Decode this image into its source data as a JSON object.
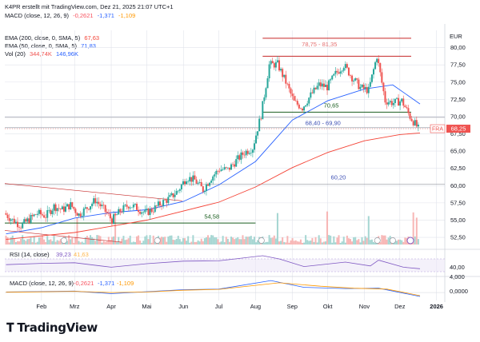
{
  "header": {
    "attribution": "K4PR erstellt mit TradingView.com, Dez 21, 2025 21:07 UTC+1",
    "macd_top": {
      "label": "MACD (close, 12, 26, 9)",
      "v1": "-0,2621",
      "v2": "-1,371",
      "v3": "-1,109"
    },
    "ema200": {
      "label": "EMA (200, close, 0, SMA, 5)",
      "value": "67,63"
    },
    "ema50": {
      "label": "EMA (50, close, 0, SMA, 5)",
      "value": "71,83"
    },
    "vol": {
      "label": "Vol (20)",
      "v1": "344,74K",
      "v2": "146,96K"
    }
  },
  "currency": "EUR",
  "brand": "TradingView",
  "colors": {
    "up": "#26a69a",
    "down": "#ef5350",
    "ema200": "#f44336",
    "ema50": "#2962ff",
    "resistance": "#c62828",
    "support": "#1b5e20",
    "label_blue": "#3f51b5",
    "rsi": "#7e57c2",
    "macd_line": "#2962ff",
    "signal_line": "#ff9800",
    "grid": "#e0e3eb"
  },
  "price_tag": {
    "symbol": "FRA",
    "value": "68,25"
  },
  "annotations": [
    {
      "text": "78,75 - 81,35",
      "price": 80.2,
      "date": "2025-09-24"
    },
    {
      "text": "70,65",
      "price": 71.3,
      "date": "2025-10-04"
    },
    {
      "text": "68,40 - 69,90",
      "price": 68.8,
      "date": "2025-09-27"
    },
    {
      "text": "60,20",
      "price": 60.9,
      "date": "2025-10-10"
    },
    {
      "text": "54,58",
      "price": 55.2,
      "date": "2025-06-25"
    }
  ],
  "rsi_panel": {
    "label": "RSI (14, close)",
    "v1": "39,23",
    "v2": "41,63",
    "ticks": [
      "40,00"
    ]
  },
  "macd_panel": {
    "label": "MACD (close, 12, 26, 9)",
    "v1": "-0,2621",
    "v2": "-1,371",
    "v3": "-1,109",
    "ticks": [
      "4,000",
      "0,0000"
    ]
  },
  "chart_data": {
    "type": "candlestick",
    "x_axis": {
      "type": "date",
      "range": [
        "2025-01-01",
        "2026-01-08"
      ],
      "tick_labels": [
        {
          "date": "2025-02-01",
          "label": "Feb"
        },
        {
          "date": "2025-03-01",
          "label": "Mrz"
        },
        {
          "date": "2025-04-01",
          "label": "Apr"
        },
        {
          "date": "2025-05-01",
          "label": "Mai"
        },
        {
          "date": "2025-06-01",
          "label": "Jun"
        },
        {
          "date": "2025-07-01",
          "label": "Jul"
        },
        {
          "date": "2025-08-01",
          "label": "Aug"
        },
        {
          "date": "2025-09-01",
          "label": "Sep"
        },
        {
          "date": "2025-10-01",
          "label": "Okt"
        },
        {
          "date": "2025-11-01",
          "label": "Nov"
        },
        {
          "date": "2025-12-01",
          "label": "Dez"
        },
        {
          "date": "2026-01-01",
          "label": "2026"
        }
      ]
    },
    "y_axis": {
      "unit": "EUR",
      "range": [
        51,
        82.5
      ],
      "ticks": [
        52.5,
        55,
        57.5,
        60,
        62.5,
        65,
        67.5,
        70,
        72.5,
        75,
        77.5,
        80
      ],
      "tick_labels": [
        "52,50",
        "55,00",
        "57,50",
        "60,00",
        "62,50",
        "65,00",
        "67,50",
        "70,00",
        "72,50",
        "75,00",
        "77,50",
        "80,00"
      ]
    },
    "grid": true,
    "closes": [
      [
        "2025-01-02",
        56.0
      ],
      [
        "2025-01-09",
        55.0
      ],
      [
        "2025-01-16",
        54.2
      ],
      [
        "2025-01-23",
        55.1
      ],
      [
        "2025-01-30",
        56.0
      ],
      [
        "2025-02-06",
        55.6
      ],
      [
        "2025-02-13",
        57.0
      ],
      [
        "2025-02-20",
        56.5
      ],
      [
        "2025-02-27",
        57.2
      ],
      [
        "2025-03-06",
        55.8
      ],
      [
        "2025-03-13",
        56.8
      ],
      [
        "2025-03-20",
        57.9
      ],
      [
        "2025-03-27",
        56.6
      ],
      [
        "2025-04-03",
        55.0
      ],
      [
        "2025-04-10",
        56.3
      ],
      [
        "2025-04-17",
        57.2
      ],
      [
        "2025-04-24",
        56.8
      ],
      [
        "2025-05-01",
        56.0
      ],
      [
        "2025-05-08",
        56.6
      ],
      [
        "2025-05-15",
        57.5
      ],
      [
        "2025-05-22",
        58.2
      ],
      [
        "2025-05-29",
        59.3
      ],
      [
        "2025-06-05",
        61.2
      ],
      [
        "2025-06-12",
        60.8
      ],
      [
        "2025-06-19",
        59.4
      ],
      [
        "2025-06-26",
        61.2
      ],
      [
        "2025-07-03",
        62.4
      ],
      [
        "2025-07-10",
        62.3
      ],
      [
        "2025-07-17",
        63.6
      ],
      [
        "2025-07-24",
        64.8
      ],
      [
        "2025-07-31",
        65.5
      ],
      [
        "2025-08-07",
        70.2
      ],
      [
        "2025-08-14",
        77.5
      ],
      [
        "2025-08-21",
        77.6
      ],
      [
        "2025-08-28",
        75.0
      ],
      [
        "2025-09-04",
        72.1
      ],
      [
        "2025-09-11",
        71.3
      ],
      [
        "2025-09-18",
        73.1
      ],
      [
        "2025-09-25",
        74.6
      ],
      [
        "2025-10-02",
        74.3
      ],
      [
        "2025-10-09",
        76.2
      ],
      [
        "2025-10-16",
        77.5
      ],
      [
        "2025-10-23",
        75.7
      ],
      [
        "2025-10-30",
        74.2
      ],
      [
        "2025-11-06",
        73.8
      ],
      [
        "2025-11-13",
        78.8
      ],
      [
        "2025-11-20",
        72.3
      ],
      [
        "2025-11-27",
        72.0
      ],
      [
        "2025-12-04",
        72.3
      ],
      [
        "2025-12-11",
        70.0
      ],
      [
        "2025-12-18",
        68.25
      ]
    ],
    "series": [
      {
        "name": "EMA (200, close, 0, SMA, 5)",
        "points": [
          [
            "2025-01-02",
            52.2
          ],
          [
            "2025-03-01",
            53.2
          ],
          [
            "2025-05-01",
            55.0
          ],
          [
            "2025-07-01",
            57.6
          ],
          [
            "2025-08-01",
            59.8
          ],
          [
            "2025-09-01",
            62.6
          ],
          [
            "2025-10-01",
            64.8
          ],
          [
            "2025-11-01",
            66.5
          ],
          [
            "2025-12-01",
            67.4
          ],
          [
            "2025-12-18",
            67.63
          ]
        ]
      },
      {
        "name": "EMA (50, close, 0, SMA, 5)",
        "points": [
          [
            "2025-01-02",
            53.0
          ],
          [
            "2025-02-01",
            53.9
          ],
          [
            "2025-03-01",
            55.3
          ],
          [
            "2025-04-01",
            56.1
          ],
          [
            "2025-05-01",
            56.5
          ],
          [
            "2025-06-01",
            57.7
          ],
          [
            "2025-07-01",
            60.1
          ],
          [
            "2025-08-01",
            63.5
          ],
          [
            "2025-09-01",
            69.5
          ],
          [
            "2025-10-01",
            72.3
          ],
          [
            "2025-11-01",
            74.0
          ],
          [
            "2025-11-25",
            74.6
          ],
          [
            "2025-12-18",
            71.83
          ]
        ]
      }
    ],
    "levels": [
      {
        "label": "78,75 - 81,35",
        "from": 78.75,
        "to": 81.35,
        "start": "2025-08-07"
      },
      {
        "label": "70,65",
        "value": 70.65,
        "start": "2025-08-07"
      },
      {
        "label": "68,40 - 69,90",
        "from": 68.4,
        "to": 69.9,
        "start": "2025-01-01"
      },
      {
        "label": "60,20",
        "value": 60.2,
        "start": "2025-01-01"
      },
      {
        "label": "54,58",
        "value": 54.58,
        "start": "2025-01-01",
        "end": "2025-08-01"
      }
    ],
    "trendlines": [
      {
        "points": [
          [
            "2025-01-01",
            60.3
          ],
          [
            "2025-05-31",
            57.8
          ]
        ]
      },
      {
        "points": [
          [
            "2025-01-01",
            53.5
          ],
          [
            "2025-04-10",
            51.8
          ]
        ]
      }
    ],
    "rsi": {
      "name": "RSI (14, close)",
      "points": [
        [
          "2025-01-02",
          52
        ],
        [
          "2025-02-01",
          56
        ],
        [
          "2025-03-01",
          58
        ],
        [
          "2025-04-01",
          44
        ],
        [
          "2025-05-01",
          55
        ],
        [
          "2025-06-01",
          63
        ],
        [
          "2025-07-01",
          64
        ],
        [
          "2025-08-07",
          80
        ],
        [
          "2025-08-21",
          70
        ],
        [
          "2025-09-11",
          46
        ],
        [
          "2025-10-16",
          60
        ],
        [
          "2025-11-06",
          48
        ],
        [
          "2025-11-13",
          66
        ],
        [
          "2025-12-04",
          44
        ],
        [
          "2025-12-18",
          39.23
        ]
      ]
    },
    "macd": {
      "name": "MACD (close, 12, 26, 9)",
      "points": [
        [
          "2025-01-02",
          0.2
        ],
        [
          "2025-03-01",
          0.5
        ],
        [
          "2025-04-01",
          -0.4
        ],
        [
          "2025-05-01",
          0.3
        ],
        [
          "2025-06-01",
          1.0
        ],
        [
          "2025-07-01",
          1.2
        ],
        [
          "2025-08-14",
          4.2
        ],
        [
          "2025-09-11",
          1.8
        ],
        [
          "2025-10-16",
          1.4
        ],
        [
          "2025-11-13",
          1.5
        ],
        [
          "2025-12-18",
          -1.371
        ]
      ]
    },
    "macd_signal": {
      "name": "Signal",
      "points": [
        [
          "2025-01-02",
          0.1
        ],
        [
          "2025-03-01",
          0.4
        ],
        [
          "2025-04-01",
          0.0
        ],
        [
          "2025-05-01",
          0.2
        ],
        [
          "2025-06-01",
          0.8
        ],
        [
          "2025-07-01",
          1.1
        ],
        [
          "2025-08-21",
          3.4
        ],
        [
          "2025-09-25",
          2.2
        ],
        [
          "2025-10-23",
          1.5
        ],
        [
          "2025-11-20",
          1.2
        ],
        [
          "2025-12-18",
          -1.109
        ]
      ]
    }
  }
}
